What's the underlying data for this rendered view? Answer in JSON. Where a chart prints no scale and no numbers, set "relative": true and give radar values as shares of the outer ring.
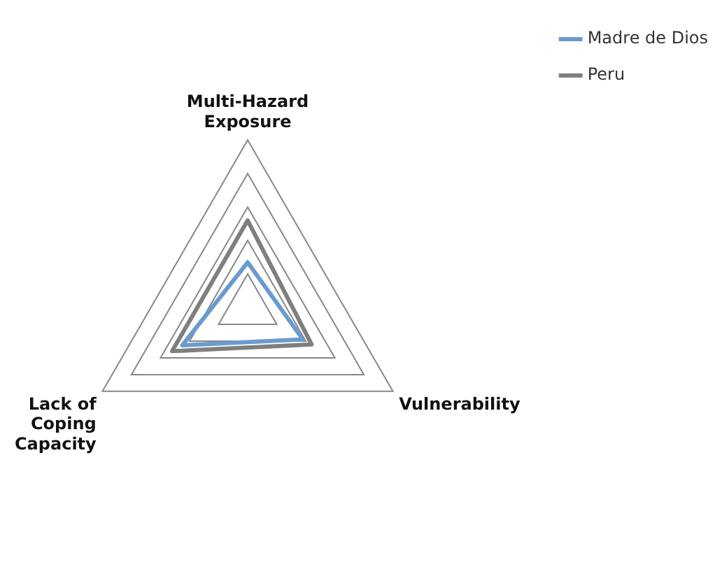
{
  "chart_data": {
    "type": "radar",
    "relative": true,
    "categories": [
      "Multi-Hazard Exposure",
      "Vulnerability",
      "Lack of Coping Capacity"
    ],
    "series": [
      {
        "name": "Madre de Dios",
        "color": "#6a9bcf",
        "values": [
          0.27,
          0.38,
          0.45
        ]
      },
      {
        "name": "Peru",
        "color": "#7f7f7f",
        "values": [
          0.52,
          0.44,
          0.52
        ]
      }
    ],
    "grid": true,
    "legend": "top right",
    "marker": "none"
  }
}
